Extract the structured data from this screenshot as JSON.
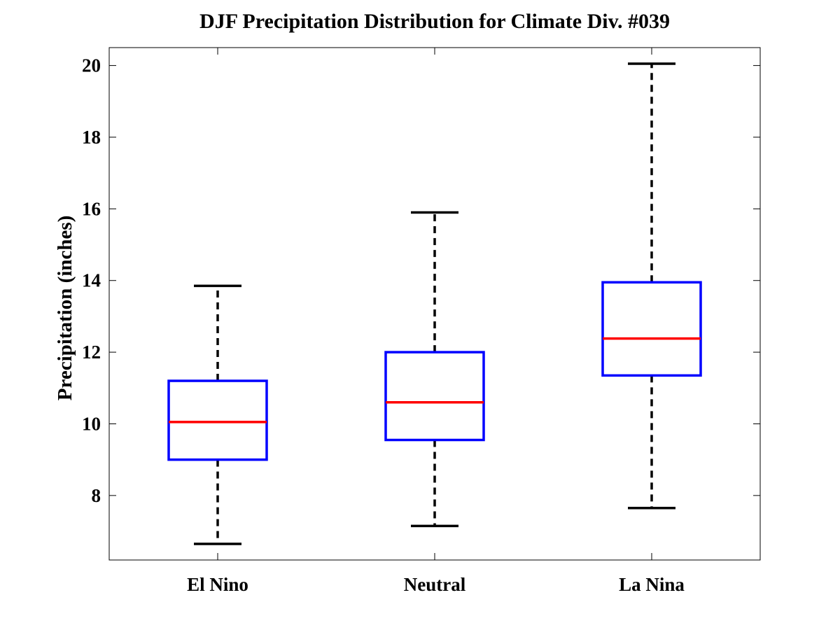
{
  "chart_data": {
    "type": "boxplot",
    "title": "DJF Precipitation Distribution for Climate Div. #039",
    "ylabel": "Precipitation (inches)",
    "xlabel": "",
    "ylim": [
      6.2,
      20.5
    ],
    "yticks": [
      8,
      10,
      12,
      14,
      16,
      18,
      20
    ],
    "categories": [
      "El Nino",
      "Neutral",
      "La Nina"
    ],
    "boxes": [
      {
        "category": "El Nino",
        "whisker_low": 6.65,
        "q1": 9.0,
        "median": 10.05,
        "q3": 11.2,
        "whisker_high": 13.85
      },
      {
        "category": "Neutral",
        "whisker_low": 7.15,
        "q1": 9.55,
        "median": 10.6,
        "q3": 12.0,
        "whisker_high": 15.9
      },
      {
        "category": "La Nina",
        "whisker_low": 7.65,
        "q1": 11.35,
        "median": 12.38,
        "q3": 13.95,
        "whisker_high": 20.05
      }
    ],
    "grid": false,
    "colors": {
      "box": "#0000ff",
      "median": "#ff0000",
      "whisker": "#000000"
    }
  }
}
